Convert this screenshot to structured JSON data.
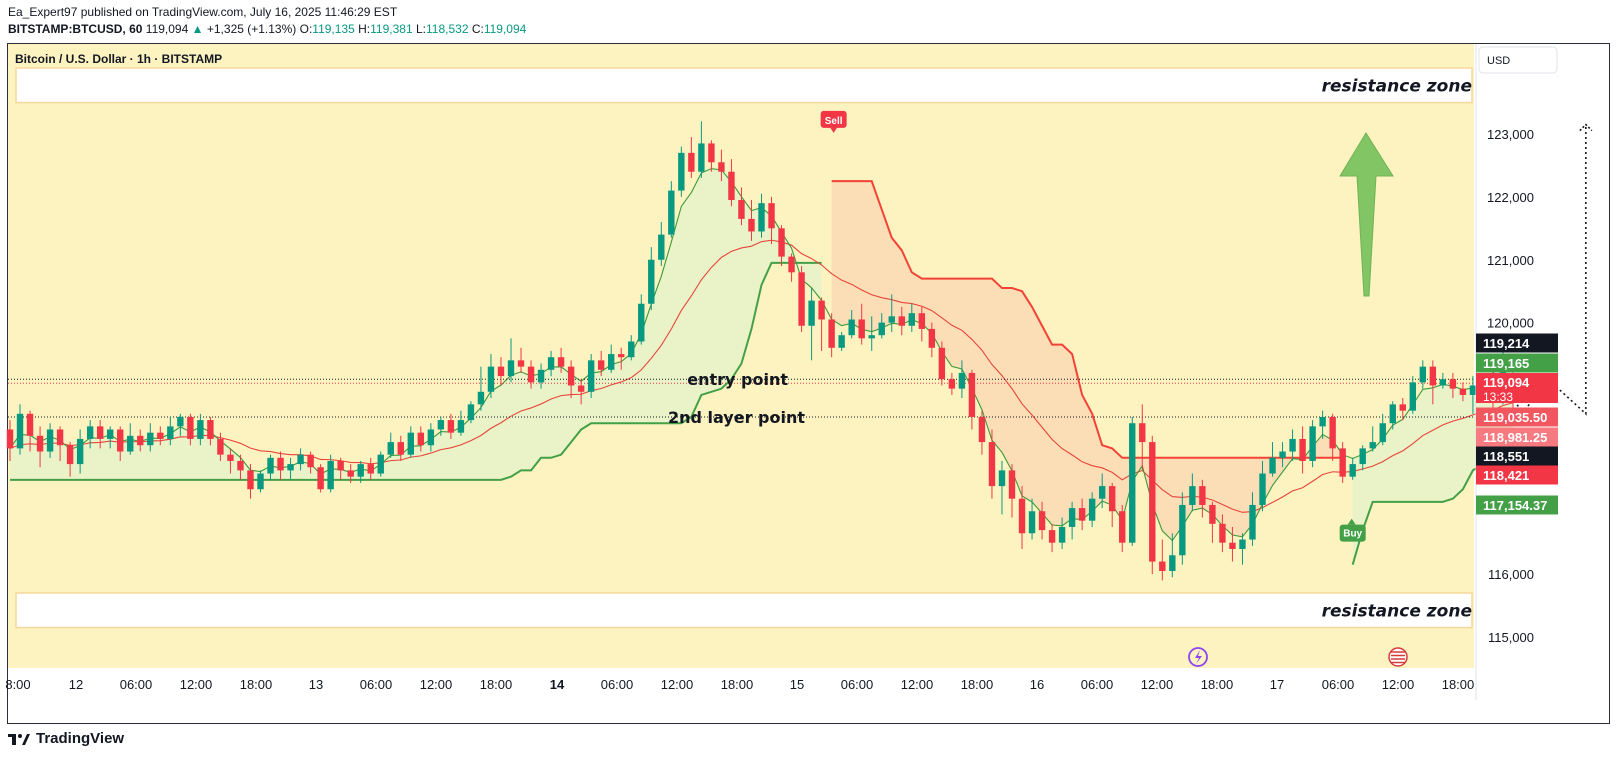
{
  "header": {
    "publisher": "Ea_Expert97 published on TradingView.com, July 16, 2025 11:46:29 EST",
    "symbol": "BITSTAMP:BTCUSD, 60",
    "last": "119,094",
    "change": "+1,325 (+1.13%)",
    "o_label": "O:",
    "o": "119,135",
    "h_label": "H:",
    "h": "119,381",
    "l_label": "L:",
    "l": "118,532",
    "c_label": "C:",
    "c": "119,094"
  },
  "legend": {
    "title": "Bitcoin / U.S. Dollar · 1h · BITSTAMP"
  },
  "currency_button": "USD",
  "footer": {
    "brand": "TradingView"
  },
  "colors": {
    "background": "#fdf3c1",
    "up": "#089981",
    "down": "#f23645",
    "supertrend_up": "#43a047",
    "supertrend_down": "#f44336",
    "fill_up": "#e8f2c8",
    "fill_down": "#fbdcb4",
    "arrow": "#6dbd56"
  },
  "chart_data": {
    "type": "candlestick",
    "title": "Bitcoin / U.S. Dollar · 1h · BITSTAMP",
    "ylim": [
      114600,
      124500
    ],
    "y_ticks": [
      {
        "value": 123000,
        "label": "123,000"
      },
      {
        "value": 122000,
        "label": "122,000"
      },
      {
        "value": 121000,
        "label": "121,000"
      },
      {
        "value": 120000,
        "label": "120,000"
      },
      {
        "value": 116000,
        "label": "116,000"
      },
      {
        "value": 115000,
        "label": "115,000"
      }
    ],
    "x_ticks": [
      "8:00",
      "12",
      "06:00",
      "12:00",
      "18:00",
      "13",
      "06:00",
      "12:00",
      "18:00",
      "14",
      "06:00",
      "12:00",
      "18:00",
      "15",
      "06:00",
      "12:00",
      "18:00",
      "16",
      "06:00",
      "12:00",
      "18:00",
      "17",
      "06:00",
      "12:00",
      "18:00"
    ],
    "bold_x_ticks": [
      "14"
    ],
    "price_labels": [
      {
        "value": 119214,
        "label": "119,214",
        "color": "#131722"
      },
      {
        "value": 119165,
        "label": "119,165",
        "color": "#43a047"
      },
      {
        "value": 119094,
        "label": "119,094",
        "sub": "13:33",
        "color": "#f23645"
      },
      {
        "value": 119035.5,
        "label": "119,035.50",
        "color": "#f2575f"
      },
      {
        "value": 118981.25,
        "label": "118,981.25",
        "color": "#f77a80"
      },
      {
        "value": 118551,
        "label": "118,551",
        "color": "#131722"
      },
      {
        "value": 118421,
        "label": "118,421",
        "color": "#f23645"
      },
      {
        "value": 117154.37,
        "label": "117,154.37",
        "color": "#43a047"
      }
    ],
    "candles": [
      [
        118300,
        118000,
        118450,
        117800
      ],
      [
        118000,
        118550,
        118700,
        117900
      ],
      [
        118550,
        118200,
        118600,
        117950
      ],
      [
        118200,
        117950,
        118350,
        117700
      ],
      [
        117950,
        118300,
        118400,
        117850
      ],
      [
        118300,
        118050,
        118350,
        117800
      ],
      [
        118050,
        117750,
        118100,
        117550
      ],
      [
        117750,
        118150,
        118300,
        117600
      ],
      [
        118150,
        118350,
        118450,
        118000
      ],
      [
        118350,
        118150,
        118450,
        118000
      ],
      [
        118150,
        118300,
        118350,
        118000
      ],
      [
        118300,
        117950,
        118350,
        117800
      ],
      [
        117950,
        118200,
        118400,
        117900
      ],
      [
        118200,
        118050,
        118300,
        117950
      ],
      [
        118050,
        118250,
        118400,
        117950
      ],
      [
        118250,
        118150,
        118350,
        118050
      ],
      [
        118150,
        118350,
        118500,
        118050
      ],
      [
        118350,
        118500,
        118550,
        118200
      ],
      [
        118500,
        118150,
        118550,
        118050
      ],
      [
        118150,
        118450,
        118550,
        118050
      ],
      [
        118450,
        118150,
        118500,
        118050
      ],
      [
        118150,
        117900,
        118250,
        117800
      ],
      [
        117900,
        117800,
        118000,
        117600
      ],
      [
        117800,
        117650,
        117900,
        117500
      ],
      [
        117650,
        117350,
        117750,
        117200
      ],
      [
        117350,
        117600,
        117650,
        117300
      ],
      [
        117600,
        117850,
        117900,
        117500
      ],
      [
        117850,
        117650,
        117950,
        117500
      ],
      [
        117650,
        117750,
        117850,
        117500
      ],
      [
        117750,
        117900,
        118000,
        117650
      ],
      [
        117900,
        117700,
        117950,
        117600
      ],
      [
        117700,
        117350,
        117750,
        117300
      ],
      [
        117350,
        117800,
        117900,
        117300
      ],
      [
        117800,
        117650,
        117850,
        117500
      ],
      [
        117650,
        117550,
        117750,
        117450
      ],
      [
        117550,
        117750,
        117800,
        117450
      ],
      [
        117750,
        117600,
        117850,
        117500
      ],
      [
        117600,
        117900,
        117950,
        117550
      ],
      [
        117900,
        118100,
        118250,
        117850
      ],
      [
        118100,
        117900,
        118200,
        117800
      ],
      [
        117900,
        118250,
        118350,
        117850
      ],
      [
        118250,
        118050,
        118350,
        117950
      ],
      [
        118050,
        118300,
        118400,
        117950
      ],
      [
        118300,
        118450,
        118500,
        118200
      ],
      [
        118450,
        118250,
        118550,
        118150
      ],
      [
        118250,
        118450,
        118600,
        118200
      ],
      [
        118450,
        118700,
        118750,
        118400
      ],
      [
        118700,
        118900,
        119300,
        118600
      ],
      [
        118900,
        119300,
        119500,
        118800
      ],
      [
        119300,
        119150,
        119450,
        119000
      ],
      [
        119150,
        119400,
        119750,
        119050
      ],
      [
        119400,
        119300,
        119600,
        119200
      ],
      [
        119300,
        119050,
        119400,
        118950
      ],
      [
        119050,
        119250,
        119350,
        118950
      ],
      [
        119250,
        119450,
        119550,
        119150
      ],
      [
        119450,
        119300,
        119600,
        119200
      ],
      [
        119300,
        119000,
        119400,
        118800
      ],
      [
        119000,
        118900,
        119100,
        118700
      ],
      [
        118900,
        119400,
        119500,
        118800
      ],
      [
        119400,
        119250,
        119550,
        119150
      ],
      [
        119250,
        119500,
        119650,
        119200
      ],
      [
        119500,
        119450,
        119600,
        119250
      ],
      [
        119450,
        119700,
        119800,
        119400
      ],
      [
        119700,
        120300,
        120450,
        119650
      ],
      [
        120300,
        121000,
        121200,
        120200
      ],
      [
        121000,
        121400,
        121600,
        120900
      ],
      [
        121400,
        122100,
        122250,
        121350
      ],
      [
        122100,
        122700,
        122800,
        122000
      ],
      [
        122700,
        122400,
        122950,
        122300
      ],
      [
        122400,
        122850,
        123200,
        122300
      ],
      [
        122850,
        122550,
        122900,
        122400
      ],
      [
        122550,
        122400,
        122750,
        122250
      ],
      [
        122400,
        121950,
        122600,
        121850
      ],
      [
        121950,
        121650,
        122150,
        121550
      ],
      [
        121650,
        121450,
        121950,
        121300
      ],
      [
        121450,
        121900,
        122050,
        121350
      ],
      [
        121900,
        121500,
        122000,
        121250
      ],
      [
        121500,
        121050,
        121550,
        120900
      ],
      [
        121050,
        120800,
        121100,
        120650
      ],
      [
        120800,
        119950,
        120900,
        119850
      ],
      [
        119950,
        120350,
        120550,
        119400
      ],
      [
        120350,
        120050,
        120400,
        119550
      ],
      [
        120050,
        119600,
        120150,
        119450
      ],
      [
        119600,
        119800,
        119850,
        119550
      ],
      [
        119800,
        120050,
        120200,
        119750
      ],
      [
        120050,
        119750,
        120300,
        119650
      ],
      [
        119750,
        119800,
        120100,
        119550
      ],
      [
        119800,
        120000,
        120150,
        119750
      ],
      [
        120000,
        120100,
        120450,
        119850
      ],
      [
        120100,
        119950,
        120250,
        119800
      ],
      [
        119950,
        120150,
        120300,
        119850
      ],
      [
        120150,
        119900,
        120250,
        119700
      ],
      [
        119900,
        119600,
        120000,
        119450
      ],
      [
        119600,
        119100,
        119700,
        119000
      ],
      [
        119100,
        118950,
        119200,
        118850
      ],
      [
        118950,
        119200,
        119400,
        118800
      ],
      [
        119200,
        118500,
        119250,
        118300
      ],
      [
        118500,
        118100,
        118600,
        117900
      ],
      [
        118100,
        117400,
        118300,
        117200
      ],
      [
        117400,
        117650,
        117800,
        116950
      ],
      [
        117650,
        117200,
        117750,
        116900
      ],
      [
        117200,
        116650,
        117400,
        116400
      ],
      [
        116650,
        117000,
        117200,
        116550
      ],
      [
        117000,
        116700,
        117150,
        116550
      ],
      [
        116700,
        116500,
        116800,
        116350
      ],
      [
        116500,
        116750,
        116900,
        116400
      ],
      [
        116750,
        117050,
        117150,
        116550
      ],
      [
        117050,
        116850,
        117200,
        116700
      ],
      [
        116850,
        117200,
        117300,
        116750
      ],
      [
        117200,
        117400,
        117600,
        117050
      ],
      [
        117400,
        117000,
        117450,
        116750
      ],
      [
        117000,
        116500,
        117100,
        116350
      ],
      [
        116500,
        118400,
        118500,
        116450
      ],
      [
        118400,
        118100,
        118700,
        117650
      ],
      [
        118100,
        116200,
        118200,
        116000
      ],
      [
        116200,
        116050,
        116550,
        115900
      ],
      [
        116050,
        116300,
        116650,
        115950
      ],
      [
        116300,
        117100,
        117300,
        116150
      ],
      [
        117100,
        117400,
        117600,
        117000
      ],
      [
        117400,
        117100,
        117500,
        116900
      ],
      [
        117100,
        116800,
        117150,
        116500
      ],
      [
        116800,
        116500,
        116950,
        116350
      ],
      [
        116500,
        116400,
        116750,
        116200
      ],
      [
        116400,
        116550,
        116650,
        116150
      ],
      [
        116550,
        117100,
        117300,
        116450
      ],
      [
        117100,
        117600,
        117800,
        117000
      ],
      [
        117600,
        117850,
        118100,
        117550
      ],
      [
        117850,
        117950,
        118100,
        117700
      ],
      [
        117950,
        118150,
        118300,
        117800
      ],
      [
        118150,
        117800,
        118350,
        117600
      ],
      [
        117800,
        118350,
        118450,
        117700
      ],
      [
        118350,
        118500,
        118600,
        118150
      ],
      [
        118500,
        118000,
        118550,
        117800
      ],
      [
        118000,
        117550,
        118100,
        117450
      ],
      [
        117550,
        117750,
        117850,
        117500
      ],
      [
        117750,
        118000,
        118050,
        117650
      ],
      [
        118000,
        118100,
        118350,
        117950
      ],
      [
        118100,
        118400,
        118550,
        118050
      ],
      [
        118400,
        118700,
        118750,
        118300
      ],
      [
        118700,
        118600,
        118800,
        118450
      ],
      [
        118600,
        119050,
        119150,
        118550
      ],
      [
        119050,
        119300,
        119400,
        118950
      ],
      [
        119300,
        119000,
        119400,
        118700
      ],
      [
        119000,
        119100,
        119200,
        118950
      ],
      [
        119100,
        118950,
        119200,
        118800
      ],
      [
        118950,
        118850,
        119050,
        118750
      ],
      [
        118850,
        119000,
        119150,
        118550
      ],
      [
        119000,
        119050,
        119150,
        118750
      ],
      [
        119050,
        118800,
        119350,
        118600
      ],
      [
        118800,
        119300,
        119800,
        118700
      ],
      [
        119135,
        119094,
        119381,
        118532
      ]
    ],
    "annotations": [
      {
        "text": "resistance zone",
        "value_top": 124050,
        "value_bottom": 123500
      },
      {
        "text": "resistance zone",
        "value_top": 115700,
        "value_bottom": 115150
      },
      {
        "text": "entry point",
        "value": 119100
      },
      {
        "text": "2nd layer point",
        "value": 118500
      },
      {
        "text": "Sell",
        "value": 123050,
        "index": 82
      },
      {
        "text": "Buy",
        "value": 116850,
        "index": 134
      }
    ],
    "entry_level": 119100,
    "second_layer_level": 118500,
    "projection": [
      [
        119200,
        0
      ],
      [
        118550,
        3
      ],
      [
        119150,
        5
      ],
      [
        118550,
        9
      ],
      [
        123150,
        9
      ]
    ],
    "projection_start_index": 148
  }
}
